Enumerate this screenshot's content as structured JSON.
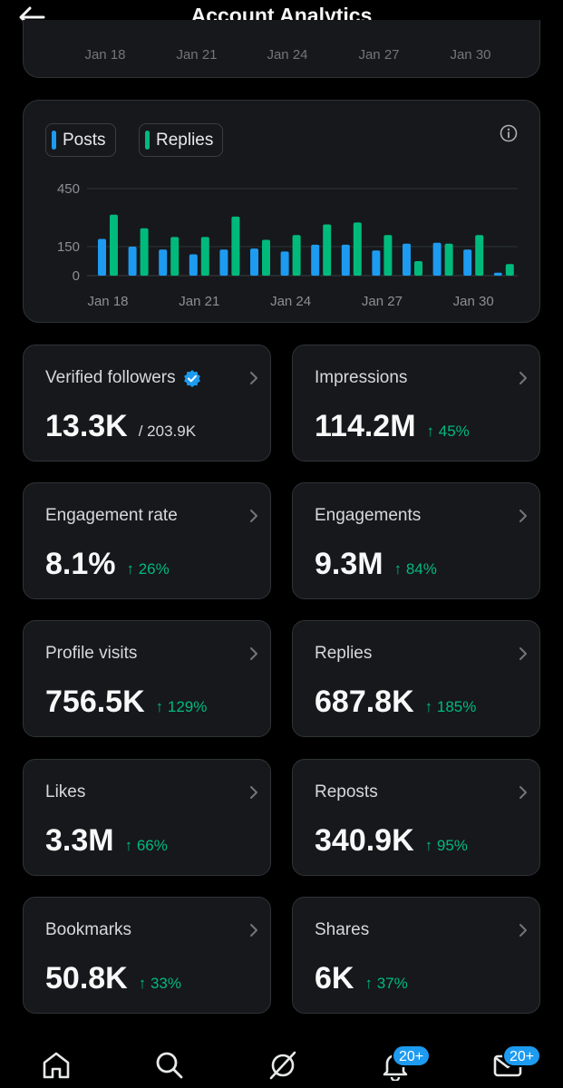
{
  "header": {
    "title": "Account Analytics",
    "back_icon": "arrow-left-icon"
  },
  "prev_chart": {
    "x_labels": [
      "Jan 18",
      "Jan 21",
      "Jan 24",
      "Jan 27",
      "Jan 30"
    ]
  },
  "chart_data": {
    "type": "bar",
    "legend": [
      {
        "name": "Posts",
        "color": "#1d9bf0"
      },
      {
        "name": "Replies",
        "color": "#00ba7c"
      }
    ],
    "categories": [
      "Jan 18",
      "Jan 19",
      "Jan 20",
      "Jan 21",
      "Jan 22",
      "Jan 23",
      "Jan 24",
      "Jan 25",
      "Jan 26",
      "Jan 27",
      "Jan 28",
      "Jan 29",
      "Jan 30",
      "Jan 31"
    ],
    "series": [
      {
        "name": "Posts",
        "values": [
          190,
          150,
          135,
          110,
          135,
          140,
          125,
          160,
          160,
          130,
          165,
          170,
          135,
          15
        ]
      },
      {
        "name": "Replies",
        "values": [
          315,
          245,
          200,
          200,
          305,
          185,
          210,
          265,
          275,
          210,
          75,
          165,
          210,
          60
        ]
      }
    ],
    "y_ticks": [
      0,
      150,
      450
    ],
    "x_tick_labels": [
      "Jan 18",
      "Jan 21",
      "Jan 24",
      "Jan 27",
      "Jan 30"
    ],
    "ylim": [
      0,
      450
    ]
  },
  "stats": [
    {
      "label": "Verified followers",
      "value": "13.3K",
      "sub": "/ 203.9K",
      "change": "",
      "verified": true
    },
    {
      "label": "Impressions",
      "value": "114.2M",
      "sub": "",
      "change": "↑ 45%"
    },
    {
      "label": "Engagement rate",
      "value": "8.1%",
      "sub": "",
      "change": "↑ 26%"
    },
    {
      "label": "Engagements",
      "value": "9.3M",
      "sub": "",
      "change": "↑ 84%"
    },
    {
      "label": "Profile visits",
      "value": "756.5K",
      "sub": "",
      "change": "↑ 129%"
    },
    {
      "label": "Replies",
      "value": "687.8K",
      "sub": "",
      "change": "↑ 185%"
    },
    {
      "label": "Likes",
      "value": "3.3M",
      "sub": "",
      "change": "↑ 66%"
    },
    {
      "label": "Reposts",
      "value": "340.9K",
      "sub": "",
      "change": "↑ 95%"
    },
    {
      "label": "Bookmarks",
      "value": "50.8K",
      "sub": "",
      "change": "↑ 33%"
    },
    {
      "label": "Shares",
      "value": "6K",
      "sub": "",
      "change": "↑ 37%"
    }
  ],
  "bottom_nav": {
    "items": [
      "home-icon",
      "search-icon",
      "grok-icon",
      "notifications-icon",
      "messages-icon"
    ],
    "notifications_badge": "20+",
    "messages_badge": "20+"
  },
  "colors": {
    "posts": "#1d9bf0",
    "replies": "#00ba7c",
    "positive": "#00ba7c",
    "background": "#000000",
    "card": "#16181c"
  }
}
